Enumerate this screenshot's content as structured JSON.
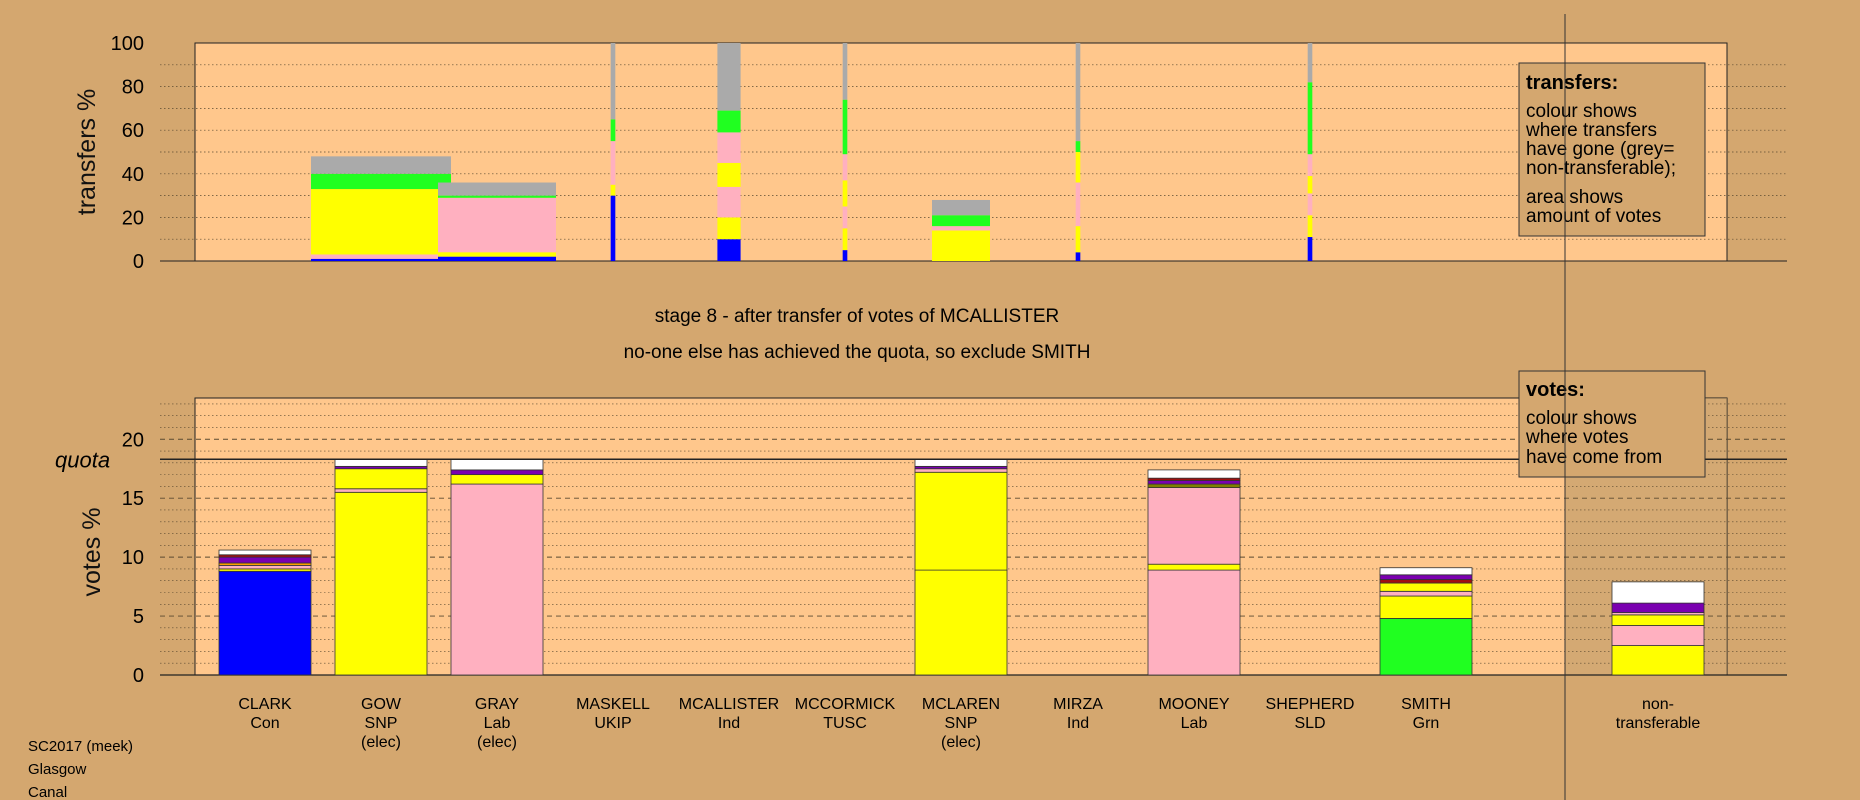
{
  "colors": {
    "background": "#d4a76f",
    "panel": "#ffc78c",
    "party": {
      "Con": "#0000ff",
      "SNP": "#ffff00",
      "Lab": "#ffb0c0",
      "Grn": "#20ff20",
      "UKIP": "#7a00b0",
      "TUSC": "#a01010",
      "SLD": "#ffa000",
      "Ind": "#808000",
      "nontransferable": "#ffffff",
      "transfer_nontransferable": "#aaaaaa"
    }
  },
  "headline": {
    "stage": "stage 8 - after transfer of votes of MCALLISTER",
    "action": "no-one else has achieved the quota, so exclude SMITH"
  },
  "footer": [
    "SC2017 (meek)",
    "Glasgow",
    "Canal"
  ],
  "transfers_legend": {
    "title": "transfers:",
    "lines": [
      "colour shows",
      "where transfers",
      "have gone (grey=",
      "non-transferable);",
      "area shows",
      "amount of votes"
    ]
  },
  "votes_legend": {
    "title": "votes:",
    "lines": [
      "colour shows",
      "where votes",
      "have come from"
    ]
  },
  "chart_data": [
    {
      "type": "bar",
      "ylabel": "transfers %",
      "ylim": [
        0,
        100
      ],
      "yticks": [
        0,
        20,
        40,
        60,
        80,
        100
      ],
      "grid": true,
      "columns": [
        {
          "candidate": "CLARK",
          "width": 0
        },
        {
          "candidate": "GOW",
          "width": 1.0,
          "segments": [
            {
              "party": "Con",
              "value": 1
            },
            {
              "party": "Lab",
              "value": 2
            },
            {
              "party": "SNP",
              "value": 30
            },
            {
              "party": "Grn",
              "value": 7
            },
            {
              "party": "transfer_nontransferable",
              "value": 8
            }
          ]
        },
        {
          "candidate": "GRAY",
          "width": 1.0,
          "segments": [
            {
              "party": "Con",
              "value": 2
            },
            {
              "party": "SNP",
              "value": 2
            },
            {
              "party": "Lab",
              "value": 25
            },
            {
              "party": "Grn",
              "value": 1
            },
            {
              "party": "transfer_nontransferable",
              "value": 6
            }
          ]
        },
        {
          "candidate": "MASKELL",
          "width": 0.04,
          "segments": [
            {
              "party": "Con",
              "value": 30
            },
            {
              "party": "SNP",
              "value": 5
            },
            {
              "party": "Lab",
              "value": 20
            },
            {
              "party": "Grn",
              "value": 10
            },
            {
              "party": "transfer_nontransferable",
              "value": 35
            }
          ]
        },
        {
          "candidate": "MCALLISTER",
          "width": 0.2,
          "segments": [
            {
              "party": "Con",
              "value": 10
            },
            {
              "party": "SNP",
              "value": 10
            },
            {
              "party": "Lab",
              "value": 14
            },
            {
              "party": "SNP",
              "value": 11
            },
            {
              "party": "Lab",
              "value": 14
            },
            {
              "party": "Grn",
              "value": 10
            },
            {
              "party": "transfer_nontransferable",
              "value": 31
            }
          ]
        },
        {
          "candidate": "MCCORMICK",
          "width": 0.04,
          "segments": [
            {
              "party": "Con",
              "value": 5
            },
            {
              "party": "SNP",
              "value": 10
            },
            {
              "party": "Lab",
              "value": 10
            },
            {
              "party": "SNP",
              "value": 12
            },
            {
              "party": "Lab",
              "value": 12
            },
            {
              "party": "Grn",
              "value": 25
            },
            {
              "party": "transfer_nontransferable",
              "value": 26
            }
          ]
        },
        {
          "candidate": "MCLAREN",
          "width": 0.5,
          "segments": [
            {
              "party": "SNP",
              "value": 14
            },
            {
              "party": "Lab",
              "value": 2
            },
            {
              "party": "Grn",
              "value": 5
            },
            {
              "party": "transfer_nontransferable",
              "value": 7
            }
          ]
        },
        {
          "candidate": "MIRZA",
          "width": 0.04,
          "segments": [
            {
              "party": "Con",
              "value": 4
            },
            {
              "party": "SNP",
              "value": 12
            },
            {
              "party": "Lab",
              "value": 20
            },
            {
              "party": "SNP",
              "value": 14
            },
            {
              "party": "Grn",
              "value": 5
            },
            {
              "party": "transfer_nontransferable",
              "value": 45
            }
          ]
        },
        {
          "candidate": "MOONEY",
          "width": 0
        },
        {
          "candidate": "SHEPHERD",
          "width": 0.04,
          "segments": [
            {
              "party": "Con",
              "value": 11
            },
            {
              "party": "SNP",
              "value": 10
            },
            {
              "party": "Lab",
              "value": 10
            },
            {
              "party": "SNP",
              "value": 8
            },
            {
              "party": "Lab",
              "value": 10
            },
            {
              "party": "Grn",
              "value": 33
            },
            {
              "party": "transfer_nontransferable",
              "value": 18
            }
          ]
        },
        {
          "candidate": "SMITH",
          "width": 0
        },
        {
          "candidate": "non-transferable",
          "width": 0
        }
      ]
    },
    {
      "type": "bar",
      "ylabel": "votes %",
      "ylim": [
        0,
        23.5
      ],
      "yticks": [
        0,
        5,
        10,
        15,
        20
      ],
      "quota": 18.3,
      "quota_label": "quota",
      "grid": true,
      "categories": [
        {
          "name": "CLARK",
          "party": "Con",
          "status": ""
        },
        {
          "name": "GOW",
          "party": "SNP",
          "status": "(elec)"
        },
        {
          "name": "GRAY",
          "party": "Lab",
          "status": "(elec)"
        },
        {
          "name": "MASKELL",
          "party": "UKIP",
          "status": ""
        },
        {
          "name": "MCALLISTER",
          "party": "Ind",
          "status": ""
        },
        {
          "name": "MCCORMICK",
          "party": "TUSC",
          "status": ""
        },
        {
          "name": "MCLAREN",
          "party": "SNP",
          "status": "(elec)"
        },
        {
          "name": "MIRZA",
          "party": "Ind",
          "status": ""
        },
        {
          "name": "MOONEY",
          "party": "Lab",
          "status": ""
        },
        {
          "name": "SHEPHERD",
          "party": "SLD",
          "status": ""
        },
        {
          "name": "SMITH",
          "party": "Grn",
          "status": ""
        },
        {
          "name": "non-",
          "party": "transferable",
          "status": ""
        }
      ],
      "stacks": [
        [
          {
            "party": "Con",
            "value": 8.8
          },
          {
            "party": "SNP",
            "value": 0.2
          },
          {
            "party": "Lab",
            "value": 0.3
          },
          {
            "party": "SLD",
            "value": 0.2
          },
          {
            "party": "UKIP",
            "value": 0.5
          },
          {
            "party": "TUSC",
            "value": 0.2
          },
          {
            "party": "nontransferable",
            "value": 0.4
          }
        ],
        [
          {
            "party": "SNP",
            "value": 15.5
          },
          {
            "party": "Lab",
            "value": 0.3
          },
          {
            "party": "SNP",
            "value": 1.7
          },
          {
            "party": "UKIP",
            "value": 0.2
          },
          {
            "party": "nontransferable",
            "value": 0.6
          }
        ],
        [
          {
            "party": "Lab",
            "value": 16.2
          },
          {
            "party": "SNP",
            "value": 0.8
          },
          {
            "party": "UKIP",
            "value": 0.4
          },
          {
            "party": "nontransferable",
            "value": 0.9
          }
        ],
        [],
        [],
        [],
        [
          {
            "party": "SNP",
            "value": 8.9
          },
          {
            "party": "SNP",
            "value": 8.3
          },
          {
            "party": "Lab",
            "value": 0.3
          },
          {
            "party": "UKIP",
            "value": 0.2
          },
          {
            "party": "nontransferable",
            "value": 0.6
          }
        ],
        [],
        [
          {
            "party": "Lab",
            "value": 8.9
          },
          {
            "party": "SNP",
            "value": 0.5
          },
          {
            "party": "Lab",
            "value": 6.5
          },
          {
            "party": "Ind",
            "value": 0.3
          },
          {
            "party": "UKIP",
            "value": 0.3
          },
          {
            "party": "TUSC",
            "value": 0.2
          },
          {
            "party": "nontransferable",
            "value": 0.7
          }
        ],
        [],
        [
          {
            "party": "Grn",
            "value": 4.8
          },
          {
            "party": "SNP",
            "value": 1.9
          },
          {
            "party": "Lab",
            "value": 0.4
          },
          {
            "party": "SNP",
            "value": 0.7
          },
          {
            "party": "TUSC",
            "value": 0.3
          },
          {
            "party": "UKIP",
            "value": 0.4
          },
          {
            "party": "nontransferable",
            "value": 0.6
          }
        ],
        [
          {
            "party": "SNP",
            "value": 2.5
          },
          {
            "party": "Lab",
            "value": 1.7
          },
          {
            "party": "SNP",
            "value": 0.9
          },
          {
            "party": "Lab",
            "value": 0.2
          },
          {
            "party": "UKIP",
            "value": 0.8
          },
          {
            "party": "nontransferable",
            "value": 1.8
          }
        ]
      ]
    }
  ]
}
